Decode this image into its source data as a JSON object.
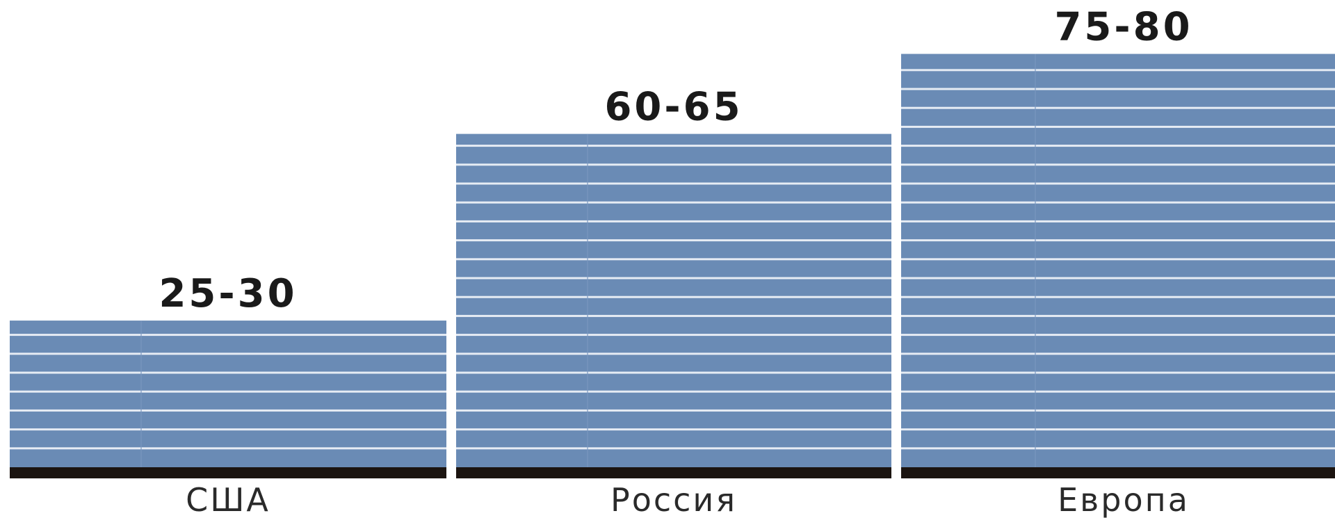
{
  "chart_data": {
    "type": "bar",
    "categories": [
      "США",
      "Россия",
      "Европа"
    ],
    "series": [
      {
        "range_labels": [
          "25-30",
          "60-65",
          "75-80"
        ],
        "values": [
          27.5,
          62.5,
          77.5
        ]
      }
    ],
    "ylim": [
      0,
      85
    ],
    "grid": false,
    "legend": "none"
  },
  "colors": {
    "bar": "#6a8bb5",
    "bar_stripe": "#e6ecf4",
    "baseline": "#1b1410",
    "label": "#1a1a1a"
  }
}
